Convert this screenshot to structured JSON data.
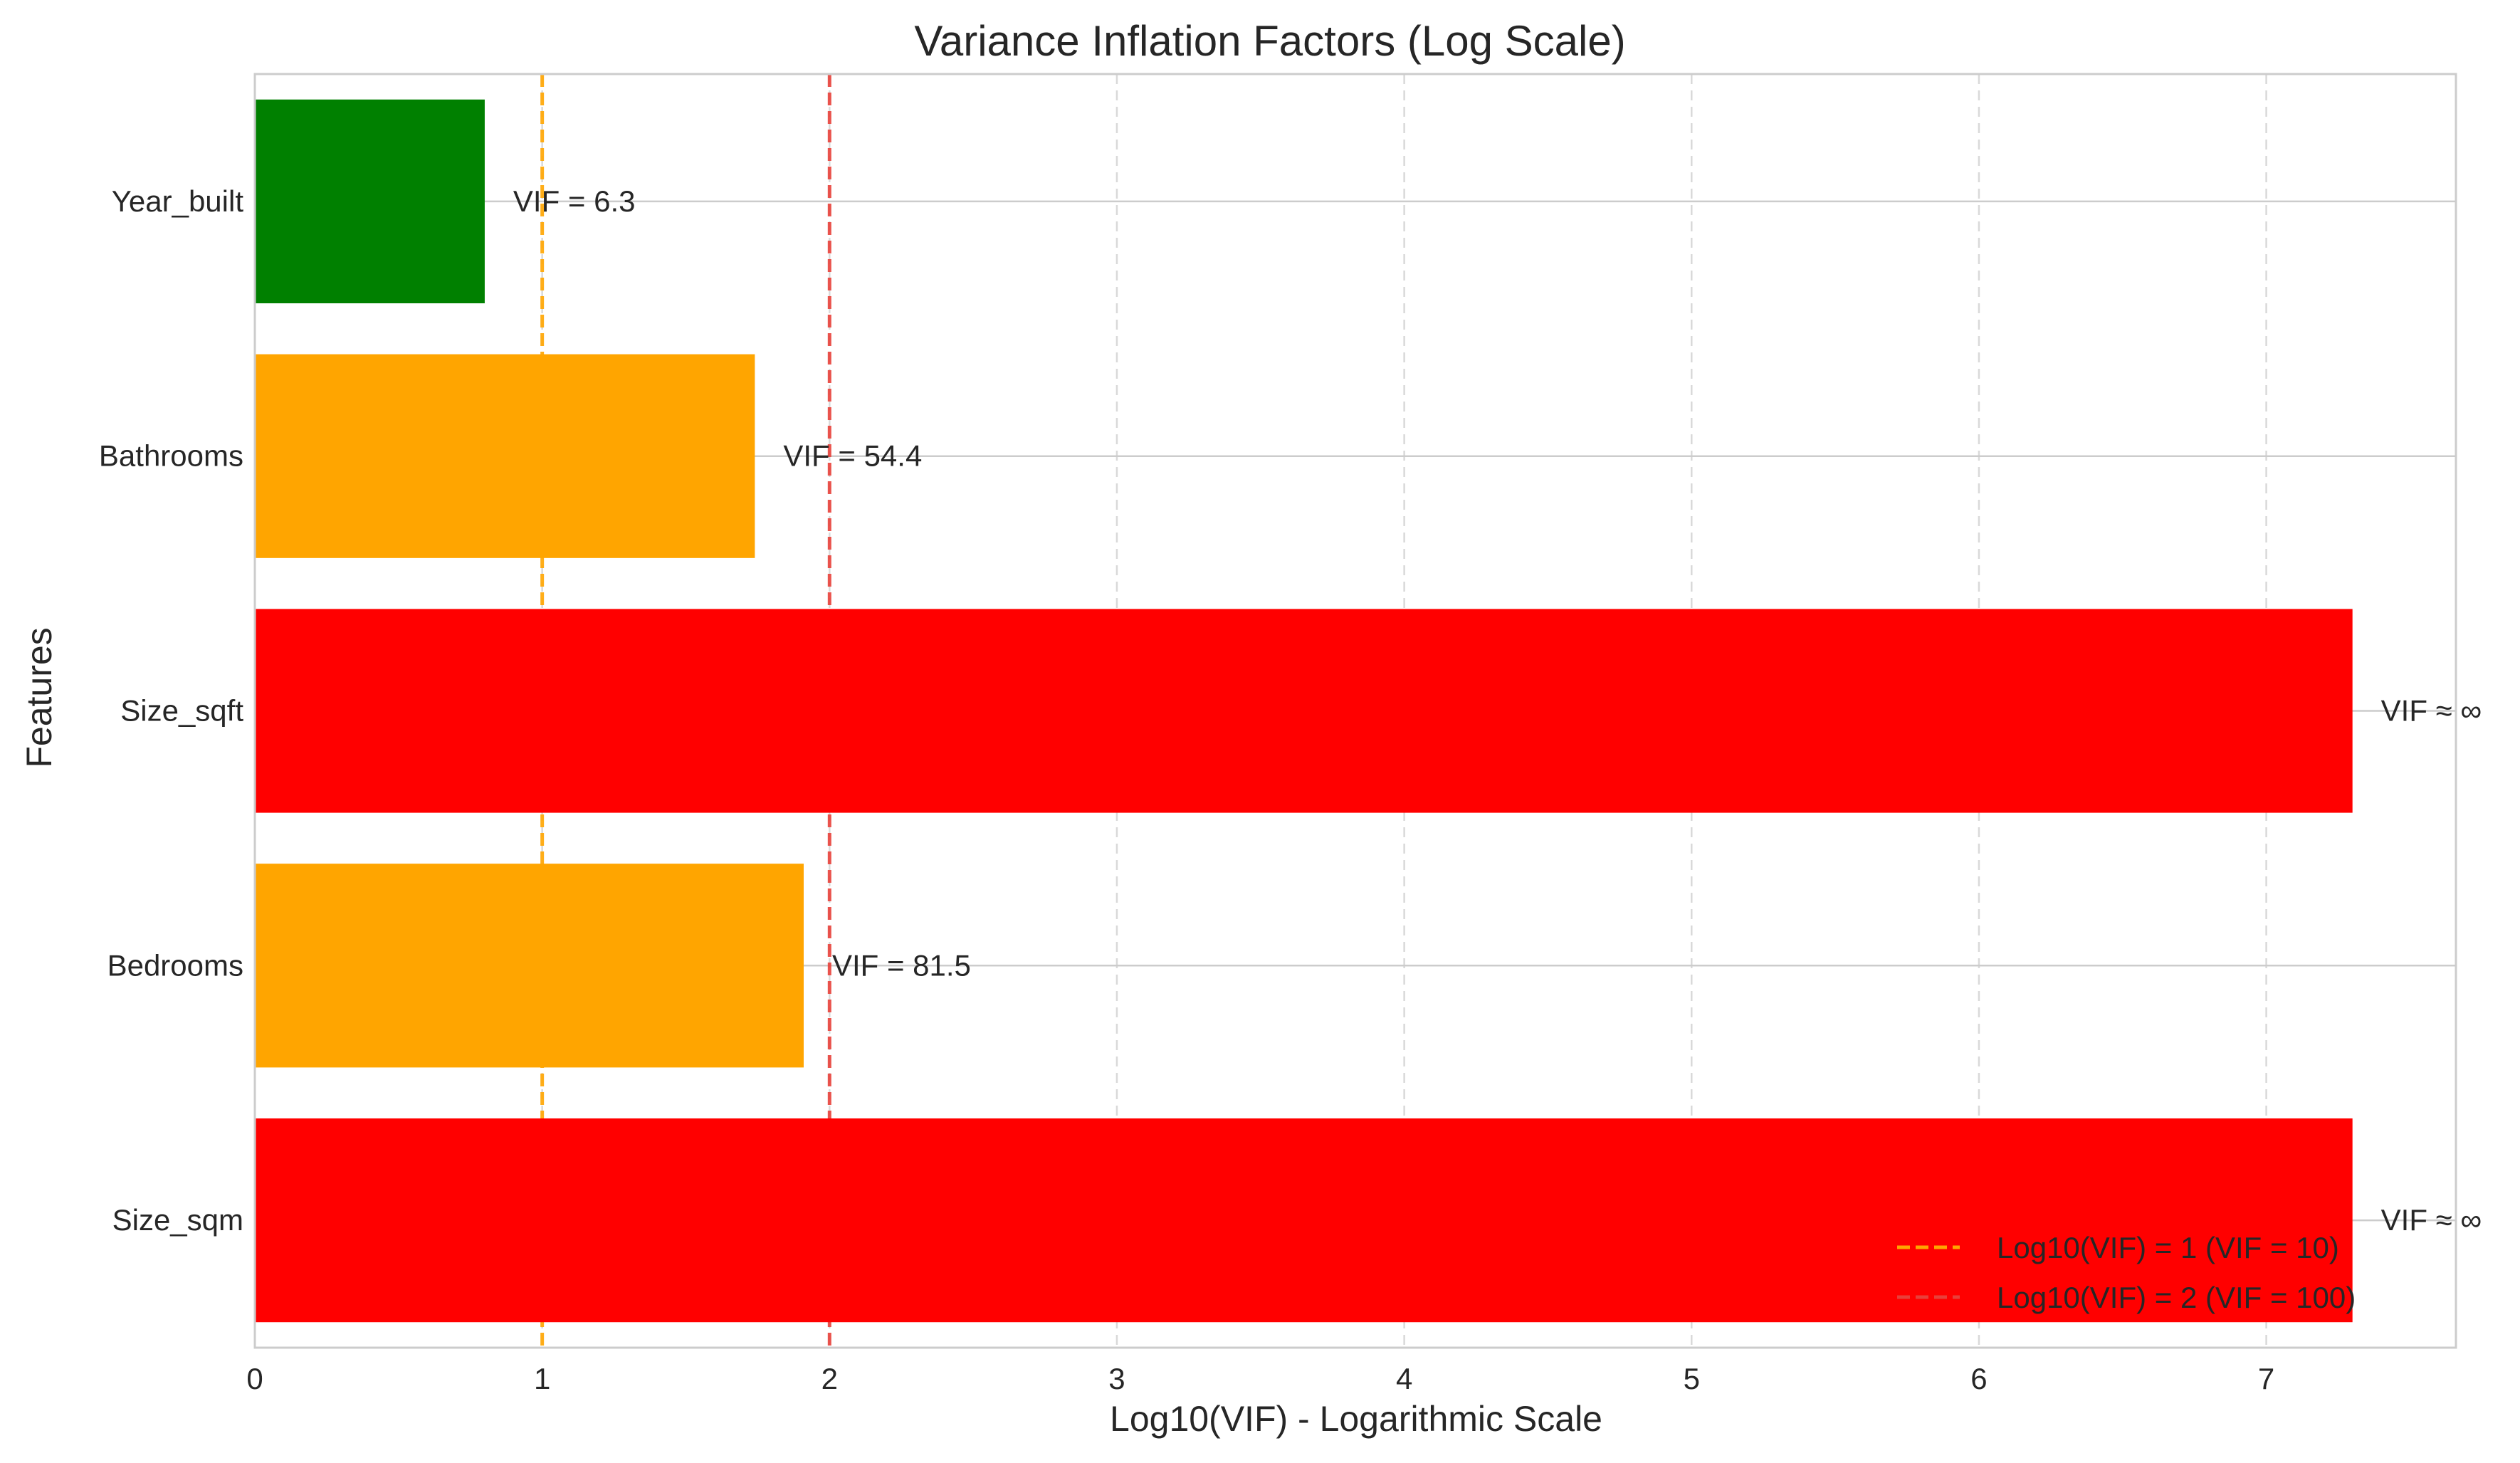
{
  "chart_data": {
    "type": "bar",
    "orientation": "horizontal",
    "title": "Variance Inflation Factors (Log Scale)",
    "xlabel": "Log10(VIF) - Logarithmic Scale",
    "ylabel": "Features",
    "xlim": [
      0,
      7.66
    ],
    "xticks": [
      0,
      1,
      2,
      3,
      4,
      5,
      6,
      7
    ],
    "grid": "x dashed, y solid",
    "categories": [
      "Size_sqm",
      "Bedrooms",
      "Size_sqft",
      "Bathrooms",
      "Year_built"
    ],
    "values": [
      7.3,
      1.91,
      7.3,
      1.74,
      0.8
    ],
    "bar_colors": [
      "#ff0000",
      "#ffa500",
      "#ff0000",
      "#ffa500",
      "#008000"
    ],
    "data_labels": [
      "VIF ≈ ∞",
      "VIF = 81.5",
      "VIF ≈ ∞",
      "VIF = 54.4",
      "VIF = 6.3"
    ],
    "reference_lines": [
      {
        "x": 1,
        "color": "#ffa500",
        "style": "dashed",
        "label": "Log10(VIF) = 1 (VIF = 10)"
      },
      {
        "x": 2,
        "color": "#e8403a",
        "style": "dashed",
        "label": "Log10(VIF) = 2 (VIF = 100)"
      }
    ],
    "legend_position": "lower-right"
  }
}
